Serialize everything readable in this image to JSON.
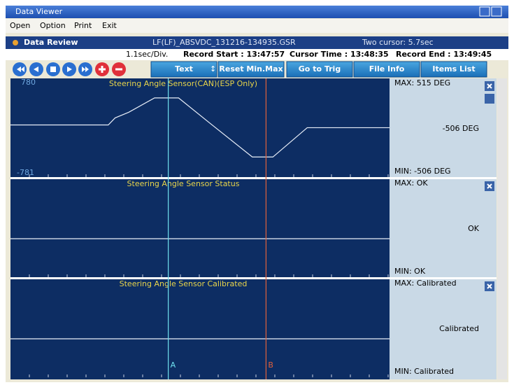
{
  "window": {
    "title": "Data Viewer"
  },
  "menu": [
    "Open",
    "Option",
    "Print",
    "Exit"
  ],
  "header": {
    "title": "Data Review",
    "file": "LF(LF)_ABSVDC_131216-134935.GSR",
    "cursor_span": "Two cursor: 5.7sec"
  },
  "info": {
    "scale": "1.1sec/Div.",
    "record_start": "Record Start : 13:47:57",
    "cursor_time": "Cursor Time : 13:48:35",
    "record_end": "Record End : 13:49:45"
  },
  "toolbar": {
    "mode": "Text",
    "buttons": [
      "Reset Min.Max",
      "Go to Trig",
      "File Info",
      "Items List"
    ]
  },
  "xlim": [
    0,
    22.1
  ],
  "cursors": [
    {
      "label": "A",
      "x": 9.2,
      "color": "#6fe0ee"
    },
    {
      "label": "B",
      "x": 14.9,
      "color": "#e0603a"
    }
  ],
  "panels": [
    {
      "title": "Steering Angle Sensor(CAN)(ESP Only)",
      "ylim": [
        -781,
        780
      ],
      "trace": {
        "x": [
          0,
          5.7,
          6.1,
          6.9,
          8.4,
          9.8,
          11.6,
          14.1,
          15.3,
          17.3,
          22.1
        ],
        "values": [
          48,
          48,
          170,
          268,
          515,
          515,
          85,
          -506,
          -506,
          0,
          0
        ]
      },
      "max": "MAX:   515 DEG",
      "value": "-506 DEG",
      "min": "MIN:  -506 DEG"
    },
    {
      "title": "Steering Angle Sensor Status",
      "max": "MAX: OK",
      "value": "OK",
      "min": "MIN: OK"
    },
    {
      "title": "Steering Angle Sensor Calibrated",
      "max": "MAX: Calibrated",
      "value": "Calibrated",
      "min": "MIN: Calibrated"
    }
  ]
}
